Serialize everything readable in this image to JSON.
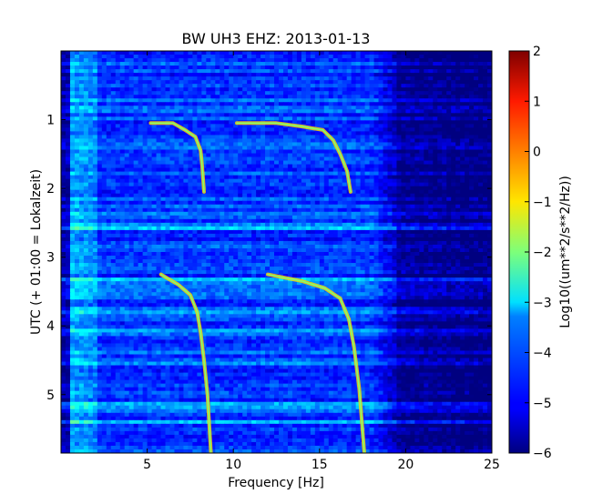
{
  "chart_data": {
    "type": "heatmap",
    "title": "BW UH3 EHZ: 2013-01-13",
    "xlabel": "Frequency [Hz]",
    "ylabel": "UTC (+ 01:00 = Lokalzeit)",
    "xlim": [
      0,
      25
    ],
    "ylim": [
      5.85,
      0.0
    ],
    "x_ticks": [
      5,
      10,
      15,
      20,
      25
    ],
    "y_ticks": [
      1,
      2,
      3,
      4,
      5
    ],
    "colorbar": {
      "label": "Log10((um**2/s**2/Hz))",
      "colormap": "jet",
      "range": [
        -6,
        2
      ],
      "ticks": [
        2,
        1,
        0,
        -1,
        -2,
        -3,
        -4,
        -5,
        -6
      ]
    },
    "dominant_level": -4.5,
    "noise_cutoff_hz": 19.5,
    "harmonic_traces": [
      {
        "points": [
          [
            5.2,
            1.05
          ],
          [
            6.5,
            1.05
          ],
          [
            7.2,
            1.15
          ],
          [
            7.8,
            1.25
          ],
          [
            8.1,
            1.45
          ],
          [
            8.2,
            1.7
          ],
          [
            8.3,
            2.05
          ]
        ]
      },
      {
        "points": [
          [
            10.2,
            1.05
          ],
          [
            12.5,
            1.05
          ],
          [
            14.0,
            1.1
          ],
          [
            15.2,
            1.15
          ],
          [
            15.8,
            1.3
          ],
          [
            16.2,
            1.5
          ],
          [
            16.6,
            1.75
          ],
          [
            16.8,
            2.05
          ]
        ]
      },
      {
        "points": [
          [
            5.8,
            3.25
          ],
          [
            6.8,
            3.4
          ],
          [
            7.5,
            3.55
          ],
          [
            7.9,
            3.8
          ],
          [
            8.1,
            4.1
          ],
          [
            8.3,
            4.5
          ],
          [
            8.5,
            5.0
          ],
          [
            8.7,
            5.85
          ]
        ]
      },
      {
        "points": [
          [
            12.0,
            3.25
          ],
          [
            14.0,
            3.35
          ],
          [
            15.3,
            3.45
          ],
          [
            16.2,
            3.6
          ],
          [
            16.7,
            3.9
          ],
          [
            17.0,
            4.3
          ],
          [
            17.3,
            4.9
          ],
          [
            17.6,
            5.85
          ]
        ]
      }
    ]
  }
}
